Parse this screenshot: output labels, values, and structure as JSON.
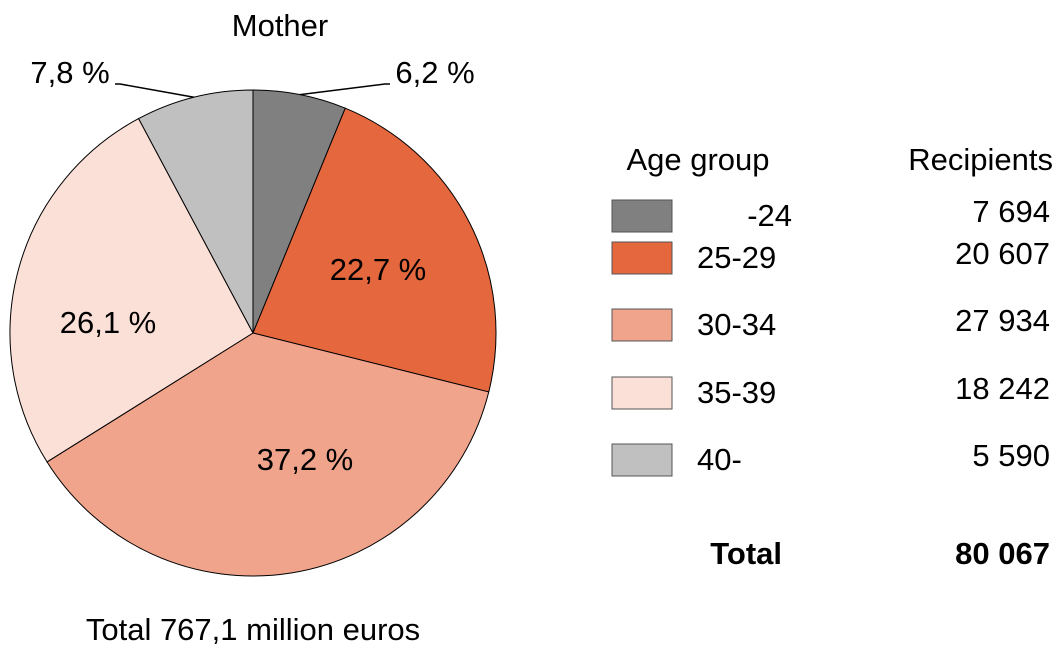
{
  "chart_data": {
    "type": "pie",
    "title": "Mother",
    "categories": [
      "-24",
      "25-29",
      "30-34",
      "35-39",
      "40-"
    ],
    "values": [
      6.2,
      22.7,
      37.2,
      26.1,
      7.8
    ],
    "value_labels": [
      "6,2 %",
      "22,7 %",
      "37,2 %",
      "26,1 %",
      "7,8 %"
    ],
    "colors": [
      "#808080",
      "#e4673e",
      "#f0a48c",
      "#fbe0d8",
      "#c0c0c0"
    ],
    "footer": "Total 767,1 million euros",
    "table": {
      "headers": [
        "Age group",
        "Recipients"
      ],
      "recipients": [
        "7 694",
        "20 607",
        "27 934",
        "18 242",
        "5 590"
      ],
      "total_label": "Total",
      "total": "80 067"
    }
  }
}
